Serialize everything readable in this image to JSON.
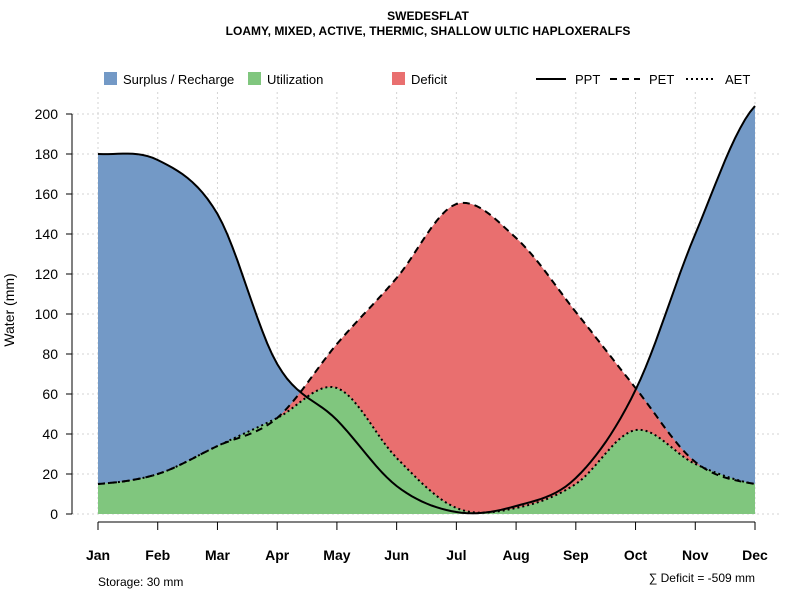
{
  "chart_data": {
    "type": "area",
    "title": "SWEDESFLAT",
    "subtitle": "LOAMY, MIXED, ACTIVE, THERMIC, SHALLOW ULTIC HAPLOXERALFS",
    "xlabel": "",
    "ylabel": "Water (mm)",
    "ylim": [
      0,
      210
    ],
    "y_ticks": [
      "0",
      "20",
      "40",
      "60",
      "80",
      "100",
      "120",
      "140",
      "160",
      "180",
      "200"
    ],
    "categories": [
      "Jan",
      "Feb",
      "Mar",
      "Apr",
      "May",
      "Jun",
      "Jul",
      "Aug",
      "Sep",
      "Oct",
      "Nov",
      "Dec"
    ],
    "grid": true,
    "series": [
      {
        "name": "PPT",
        "line": "solid",
        "values": [
          180,
          177,
          150,
          75,
          47,
          14,
          1,
          4,
          18,
          62,
          140,
          204
        ]
      },
      {
        "name": "PET",
        "line": "dashed",
        "values": [
          15,
          20,
          34,
          48,
          85,
          118,
          155,
          138,
          101,
          63,
          26,
          15
        ]
      },
      {
        "name": "AET",
        "line": "dotted",
        "values": [
          15,
          20,
          34,
          48,
          63,
          28,
          3,
          3,
          15,
          42,
          25,
          15
        ]
      }
    ],
    "legend": {
      "position": "top",
      "areas": [
        {
          "label": "Surplus / Recharge",
          "color": "#7399c6"
        },
        {
          "label": "Utilization",
          "color": "#80c67e"
        },
        {
          "label": "Deficit",
          "color": "#e96f6f"
        }
      ],
      "lines": [
        {
          "label": "PPT",
          "style": "solid"
        },
        {
          "label": "PET",
          "style": "dashed"
        },
        {
          "label": "AET",
          "style": "dotted"
        }
      ]
    },
    "footnotes": {
      "storage": "Storage: 30 mm",
      "deficit": "∑ Deficit = -509 mm"
    }
  }
}
